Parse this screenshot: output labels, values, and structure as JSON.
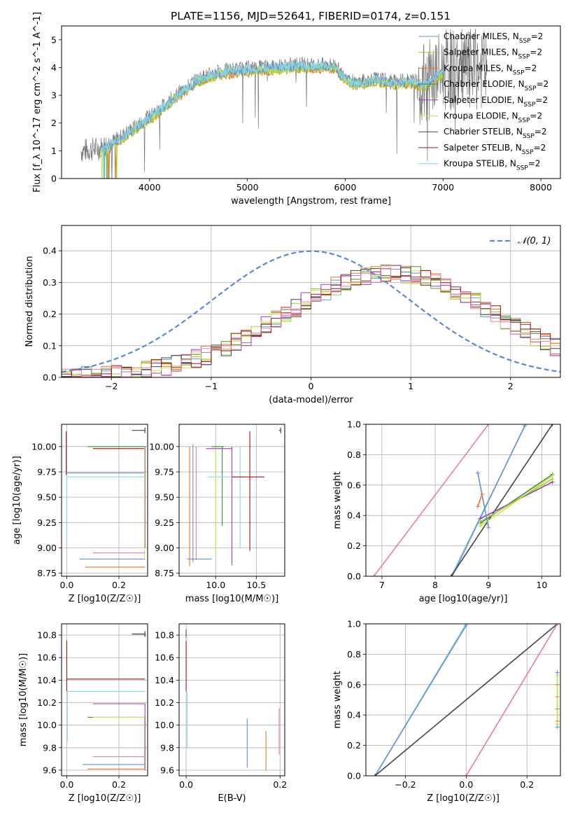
{
  "title": "PLATE=1156, MJD=52641, FIBERID=0174, z=0.151",
  "colors": {
    "chabrier_miles": "#6a8fd6",
    "salpeter_miles": "#9acd32",
    "kroupa_miles": "#e8742a",
    "chabrier_elodie": "#4b8a2e",
    "salpeter_elodie": "#a23cc2",
    "kroupa_elodie": "#c4e84a",
    "chabrier_stelib": "#444444",
    "salpeter_stelib": "#b01010",
    "kroupa_stelib": "#84d8ec",
    "pink": "#e87ca8",
    "data": "#777777",
    "gauss": "#5b87d6",
    "grid": "#b0b0b0"
  },
  "chart_data": [
    {
      "id": "spectrum",
      "type": "line",
      "xlabel": "wavelength [Angstrom, rest frame]",
      "ylabel": "Flux [f_λ 10^-17 erg cm^-2 s^-1 A^-1]",
      "xlim": [
        3100,
        8200
      ],
      "ylim": [
        0,
        5.5
      ],
      "xticks": [
        4000,
        5000,
        6000,
        7000,
        8000
      ],
      "yticks": [
        0,
        1,
        2,
        3,
        4,
        5
      ],
      "grid": false,
      "legend_position": "top-right",
      "legend": [
        "Chabrier MILES, N_SSP=2",
        "Salpeter MILES, N_SSP=2",
        "Kroupa MILES, N_SSP=2",
        "Chabrier ELODIE, N_SSP=2",
        "Salpeter ELODIE, N_SSP=2",
        "Kroupa ELODIE, N_SSP=2",
        "Chabrier STELIB, N_SSP=2",
        "Salpeter STELIB, N_SSP=2",
        "Kroupa STELIB, N_SSP=2"
      ],
      "continuum": {
        "wavelength": [
          3300,
          3500,
          3700,
          3900,
          4100,
          4300,
          4500,
          4700,
          4900,
          5100,
          5300,
          5500,
          5700,
          5900,
          5950,
          6100,
          6300,
          6500,
          6700,
          6800,
          7000,
          7200,
          7400
        ],
        "flux": [
          1.0,
          1.1,
          1.5,
          2.0,
          2.5,
          3.1,
          3.6,
          3.85,
          3.95,
          4.0,
          4.05,
          4.1,
          4.1,
          4.1,
          3.8,
          3.45,
          3.6,
          3.5,
          3.55,
          3.4,
          3.9,
          3.9,
          3.9
        ]
      }
    },
    {
      "id": "residuals",
      "type": "line",
      "xlabel": "(data-model)/error",
      "ylabel": "Normed distribution",
      "xlim": [
        -2.5,
        2.5
      ],
      "ylim": [
        0,
        0.48
      ],
      "xticks": [
        -2,
        -1,
        0,
        1,
        2
      ],
      "yticks": [
        0.0,
        0.1,
        0.2,
        0.3,
        0.4
      ],
      "grid": true,
      "legend_position": "top-right",
      "legend": [
        "N(0,1)"
      ]
    },
    {
      "id": "age-vs-Z",
      "type": "scatter",
      "xlabel": "Z [log10(Z/Z☉)]",
      "ylabel": "age [log10(age/yr)]",
      "xlim": [
        -0.02,
        0.31
      ],
      "ylim": [
        8.72,
        10.22
      ],
      "xticks": [
        0.0,
        0.2
      ],
      "yticks": [
        8.75,
        9.0,
        9.25,
        9.5,
        9.75,
        10.0
      ],
      "grid": true
    },
    {
      "id": "age-vs-mass",
      "type": "scatter",
      "xlabel": "mass [log10(M/M☉)]",
      "ylabel": "",
      "xlim": [
        9.55,
        10.85
      ],
      "ylim": [
        8.72,
        10.22
      ],
      "xticks": [
        10.0,
        10.5
      ],
      "yticks": [
        8.75,
        9.0,
        9.25,
        9.5,
        9.75,
        10.0
      ],
      "grid": true
    },
    {
      "id": "weight-vs-age",
      "type": "line",
      "xlabel": "age [log10(age/yr)]",
      "ylabel": "mass weight",
      "xlim": [
        6.7,
        10.35
      ],
      "ylim": [
        0,
        1
      ],
      "xticks": [
        7,
        8,
        9,
        10
      ],
      "yticks": [
        0.0,
        0.2,
        0.4,
        0.6,
        0.8,
        1.0
      ],
      "grid": true,
      "series": [
        {
          "x": [
            6.85,
            9.0
          ],
          "y": [
            0.0,
            1.0
          ],
          "color": "pink"
        },
        {
          "x": [
            8.3,
            9.7
          ],
          "y": [
            0.0,
            1.0
          ],
          "color": "kroupa_stelib"
        },
        {
          "x": [
            8.32,
            9.68
          ],
          "y": [
            0.0,
            0.99
          ],
          "color": "chabrier_miles"
        },
        {
          "x": [
            8.3,
            10.2
          ],
          "y": [
            0.0,
            1.0
          ],
          "color": "chabrier_stelib"
        },
        {
          "x": [
            8.85,
            10.2
          ],
          "y": [
            0.35,
            0.67
          ],
          "color": "chabrier_elodie"
        },
        {
          "x": [
            8.85,
            10.2
          ],
          "y": [
            0.38,
            0.62
          ],
          "color": "salpeter_elodie"
        },
        {
          "x": [
            8.85,
            10.2
          ],
          "y": [
            0.33,
            0.66
          ],
          "color": "kroupa_elodie"
        },
        {
          "x": [
            8.85,
            10.2
          ],
          "y": [
            0.36,
            0.64
          ],
          "color": "salpeter_miles"
        },
        {
          "x": [
            8.8,
            9.0
          ],
          "y": [
            0.68,
            0.32
          ],
          "color": "chabrier_miles"
        },
        {
          "x": [
            8.8,
            8.88
          ],
          "y": [
            0.46,
            0.54
          ],
          "color": "kroupa_miles"
        }
      ]
    },
    {
      "id": "mass-vs-Z",
      "type": "scatter",
      "xlabel": "Z [log10(Z/Z☉)]",
      "ylabel": "mass [log10(M/M☉)]",
      "xlim": [
        -0.02,
        0.31
      ],
      "ylim": [
        9.55,
        10.9
      ],
      "xticks": [
        0.0,
        0.2
      ],
      "yticks": [
        9.6,
        9.8,
        10.0,
        10.2,
        10.4,
        10.6,
        10.8
      ],
      "grid": true
    },
    {
      "id": "mass-vs-ebv",
      "type": "scatter",
      "xlabel": "E(B-V)",
      "ylabel": "",
      "xlim": [
        -0.015,
        0.21
      ],
      "ylim": [
        9.55,
        10.9
      ],
      "xticks": [
        0.0,
        0.2
      ],
      "yticks": [
        9.6,
        9.8,
        10.0,
        10.2,
        10.4,
        10.6,
        10.8
      ],
      "grid": true
    },
    {
      "id": "weight-vs-Z",
      "type": "line",
      "xlabel": "Z [log10(Z/Z☉)]",
      "ylabel": "mass weight",
      "xlim": [
        -0.33,
        0.31
      ],
      "ylim": [
        0,
        1
      ],
      "xticks": [
        -0.2,
        0.0,
        0.2
      ],
      "yticks": [
        0.0,
        0.2,
        0.4,
        0.6,
        0.8,
        1.0
      ],
      "grid": true,
      "series": [
        {
          "x": [
            -0.3,
            0.0
          ],
          "y": [
            0.0,
            1.0
          ],
          "color": "kroupa_stelib"
        },
        {
          "x": [
            -0.3,
            0.0
          ],
          "y": [
            0.0,
            0.99
          ],
          "color": "chabrier_miles"
        },
        {
          "x": [
            -0.3,
            0.3
          ],
          "y": [
            0.0,
            1.0
          ],
          "color": "chabrier_stelib"
        },
        {
          "x": [
            0.0,
            0.3
          ],
          "y": [
            0.0,
            1.0
          ],
          "color": "pink"
        },
        {
          "x": [
            0.3,
            0.3
          ],
          "y": [
            0.32,
            0.68
          ],
          "color": "chabrier_miles"
        },
        {
          "x": [
            0.3,
            0.3
          ],
          "y": [
            0.34,
            0.66
          ],
          "color": "kroupa_elodie"
        }
      ]
    }
  ]
}
